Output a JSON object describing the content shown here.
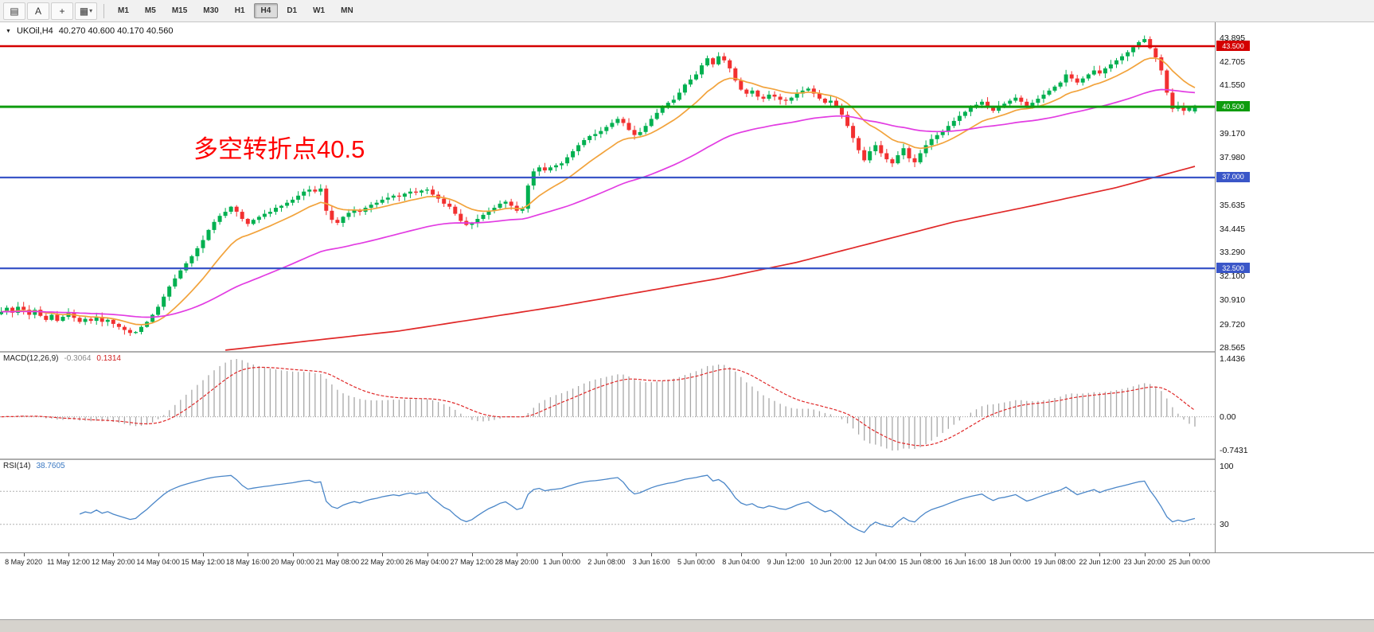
{
  "toolbar": {
    "tools": [
      {
        "name": "chart-display-icon",
        "glyph": "▤"
      },
      {
        "name": "text-tool-icon",
        "glyph": "A"
      },
      {
        "name": "crosshair-icon",
        "glyph": "+"
      },
      {
        "name": "shapes-tool-icon",
        "glyph": "▦",
        "chevron": "▾"
      }
    ],
    "timeframes": [
      {
        "label": "M1",
        "selected": false
      },
      {
        "label": "M5",
        "selected": false
      },
      {
        "label": "M15",
        "selected": false
      },
      {
        "label": "M30",
        "selected": false
      },
      {
        "label": "H1",
        "selected": false
      },
      {
        "label": "H4",
        "selected": true
      },
      {
        "label": "D1",
        "selected": false
      },
      {
        "label": "W1",
        "selected": false
      },
      {
        "label": "MN",
        "selected": false
      }
    ]
  },
  "main": {
    "title": {
      "dropdown_glyph": "▼",
      "symbol": "UKOil,H4",
      "ohlc": "40.270 40.600 40.170 40.560"
    },
    "annotation": {
      "text": "多空转折点40.5",
      "color": "#ff0000"
    },
    "price_scale_labels": [
      "43.895",
      "42.705",
      "41.550",
      "39.170",
      "37.980",
      "35.635",
      "34.445",
      "33.290",
      "32.100",
      "30.910",
      "29.720",
      "28.565"
    ],
    "price_badges": [
      {
        "text": "43.500",
        "price": 43.5,
        "color": "#d40000"
      },
      {
        "text": "40.500",
        "price": 40.5,
        "color": "#0e9c0e"
      },
      {
        "text": "37.000",
        "price": 37.0,
        "color": "#3a56c8"
      },
      {
        "text": "32.500",
        "price": 32.5,
        "color": "#3a56c8"
      }
    ]
  },
  "indicators": {
    "macd": {
      "name": "MACD(12,26,9)",
      "value_main": "-0.3064",
      "value_signal": "0.1314",
      "scale": {
        "top": "1.4436",
        "zero": "0.00",
        "bottom": "-0.7431"
      }
    },
    "rsi": {
      "name": "RSI(14)",
      "value": "38.7605",
      "scale": {
        "top": "100",
        "bottom": "30"
      }
    }
  },
  "time_axis": {
    "labels": [
      "8 May 2020",
      "11 May 12:00",
      "12 May 20:00",
      "14 May 04:00",
      "15 May 12:00",
      "18 May 16:00",
      "20 May 00:00",
      "21 May 08:00",
      "22 May 20:00",
      "26 May 04:00",
      "27 May 12:00",
      "28 May 20:00",
      "1 Jun 00:00",
      "2 Jun 08:00",
      "3 Jun 16:00",
      "5 Jun 00:00",
      "8 Jun 04:00",
      "9 Jun 12:00",
      "10 Jun 20:00",
      "12 Jun 04:00",
      "15 Jun 08:00",
      "16 Jun 16:00",
      "18 Jun 00:00",
      "19 Jun 08:00",
      "22 Jun 12:00",
      "23 Jun 20:00",
      "25 Jun 00:00"
    ]
  },
  "chart_data": [
    {
      "id": "price",
      "type": "candlestick",
      "symbol": "UKOil",
      "timeframe": "H4",
      "ylim": [
        28.407,
        44.683
      ],
      "up_color": "#00b050",
      "down_color": "#f23030",
      "last_ohlc": [
        40.27,
        40.6,
        40.17,
        40.56
      ],
      "first_label_bar": 4,
      "label_step_bars": 8,
      "closes": [
        30.35,
        30.55,
        30.3,
        30.6,
        30.45,
        30.2,
        30.45,
        30.15,
        29.95,
        30.2,
        29.9,
        30.1,
        30.3,
        30.05,
        29.85,
        30.0,
        29.9,
        30.1,
        29.85,
        29.95,
        29.75,
        29.6,
        29.45,
        29.3,
        29.35,
        29.6,
        29.85,
        30.2,
        30.6,
        31.1,
        31.6,
        32.0,
        32.4,
        32.75,
        33.1,
        33.5,
        33.9,
        34.4,
        34.8,
        35.1,
        35.3,
        35.55,
        35.3,
        34.95,
        34.7,
        34.9,
        35.05,
        35.2,
        35.3,
        35.5,
        35.6,
        35.75,
        35.9,
        36.1,
        36.3,
        36.4,
        36.3,
        36.45,
        35.35,
        34.9,
        34.75,
        35.05,
        35.25,
        35.4,
        35.3,
        35.5,
        35.65,
        35.75,
        35.9,
        36.0,
        36.1,
        36.05,
        36.2,
        36.3,
        36.25,
        36.35,
        36.4,
        36.15,
        35.95,
        35.7,
        35.55,
        35.2,
        34.85,
        34.65,
        34.75,
        34.95,
        35.15,
        35.35,
        35.5,
        35.7,
        35.8,
        35.6,
        35.35,
        35.45,
        36.6,
        37.3,
        37.5,
        37.35,
        37.5,
        37.6,
        37.7,
        38.0,
        38.3,
        38.6,
        38.85,
        39.05,
        39.15,
        39.3,
        39.5,
        39.7,
        39.9,
        39.7,
        39.35,
        39.1,
        39.25,
        39.55,
        39.9,
        40.2,
        40.45,
        40.7,
        40.85,
        41.2,
        41.6,
        41.85,
        42.1,
        42.55,
        42.9,
        42.6,
        43.0,
        42.8,
        42.4,
        41.8,
        41.35,
        41.15,
        41.3,
        41.0,
        40.9,
        41.1,
        41.0,
        40.85,
        40.8,
        40.95,
        41.15,
        41.3,
        41.4,
        41.15,
        40.9,
        40.7,
        40.8,
        40.5,
        40.1,
        39.55,
        38.95,
        38.35,
        37.85,
        38.3,
        38.6,
        38.2,
        37.9,
        37.7,
        38.1,
        38.45,
        37.95,
        37.75,
        38.2,
        38.6,
        38.9,
        39.1,
        39.3,
        39.55,
        39.8,
        40.05,
        40.25,
        40.45,
        40.6,
        40.75,
        40.5,
        40.3,
        40.55,
        40.65,
        40.8,
        40.95,
        40.75,
        40.55,
        40.7,
        40.9,
        41.1,
        41.3,
        41.5,
        41.7,
        42.1,
        41.9,
        41.7,
        41.9,
        42.1,
        42.3,
        42.15,
        42.4,
        42.6,
        42.8,
        43.0,
        43.2,
        43.45,
        43.7,
        43.85,
        43.4,
        42.95,
        42.3,
        41.2,
        40.4,
        40.55,
        40.3,
        40.45,
        40.56
      ],
      "overlays": [
        {
          "name": "ma-fast-line",
          "style": "ema",
          "period": 13,
          "color": "#f2a33c"
        },
        {
          "name": "ma-mid-line",
          "style": "ema",
          "period": 55,
          "color": "#e23ce2"
        },
        {
          "name": "ma-slow-line",
          "style": "anchors",
          "color": "#e02828",
          "points": [
            [
              40,
              28.45
            ],
            [
              71,
              29.4
            ],
            [
              99,
              30.6
            ],
            [
              128,
              32.0
            ],
            [
              142,
              32.8
            ],
            [
              156,
              33.8
            ],
            [
              170,
              34.8
            ],
            [
              184,
              35.6
            ],
            [
              199,
              36.5
            ],
            [
              213,
              37.55
            ]
          ]
        }
      ],
      "hlines": [
        {
          "price": 43.5,
          "color": "#d40000",
          "width": 2.6
        },
        {
          "price": 40.5,
          "color": "#0e9c0e",
          "width": 3
        },
        {
          "price": 37.0,
          "color": "#3a56c8",
          "width": 2.2
        },
        {
          "price": 32.5,
          "color": "#3a56c8",
          "width": 2.2
        }
      ]
    },
    {
      "id": "macd",
      "type": "bar",
      "label": "MACD(12,26,9)",
      "fast": 12,
      "slow": 26,
      "signal": 9,
      "current_macd": -0.3064,
      "current_signal": 0.1314,
      "scale": [
        1.4436,
        0.0,
        -0.7431
      ],
      "hist_color": "#a8a8a8",
      "signal_color": "#e02828",
      "source": "price.closes"
    },
    {
      "id": "rsi",
      "type": "line",
      "label": "RSI(14)",
      "period": 14,
      "current": 38.7605,
      "levels": [
        70,
        30
      ],
      "ylim": [
        0,
        100
      ],
      "color": "#4a86c8",
      "source": "price.closes"
    }
  ]
}
